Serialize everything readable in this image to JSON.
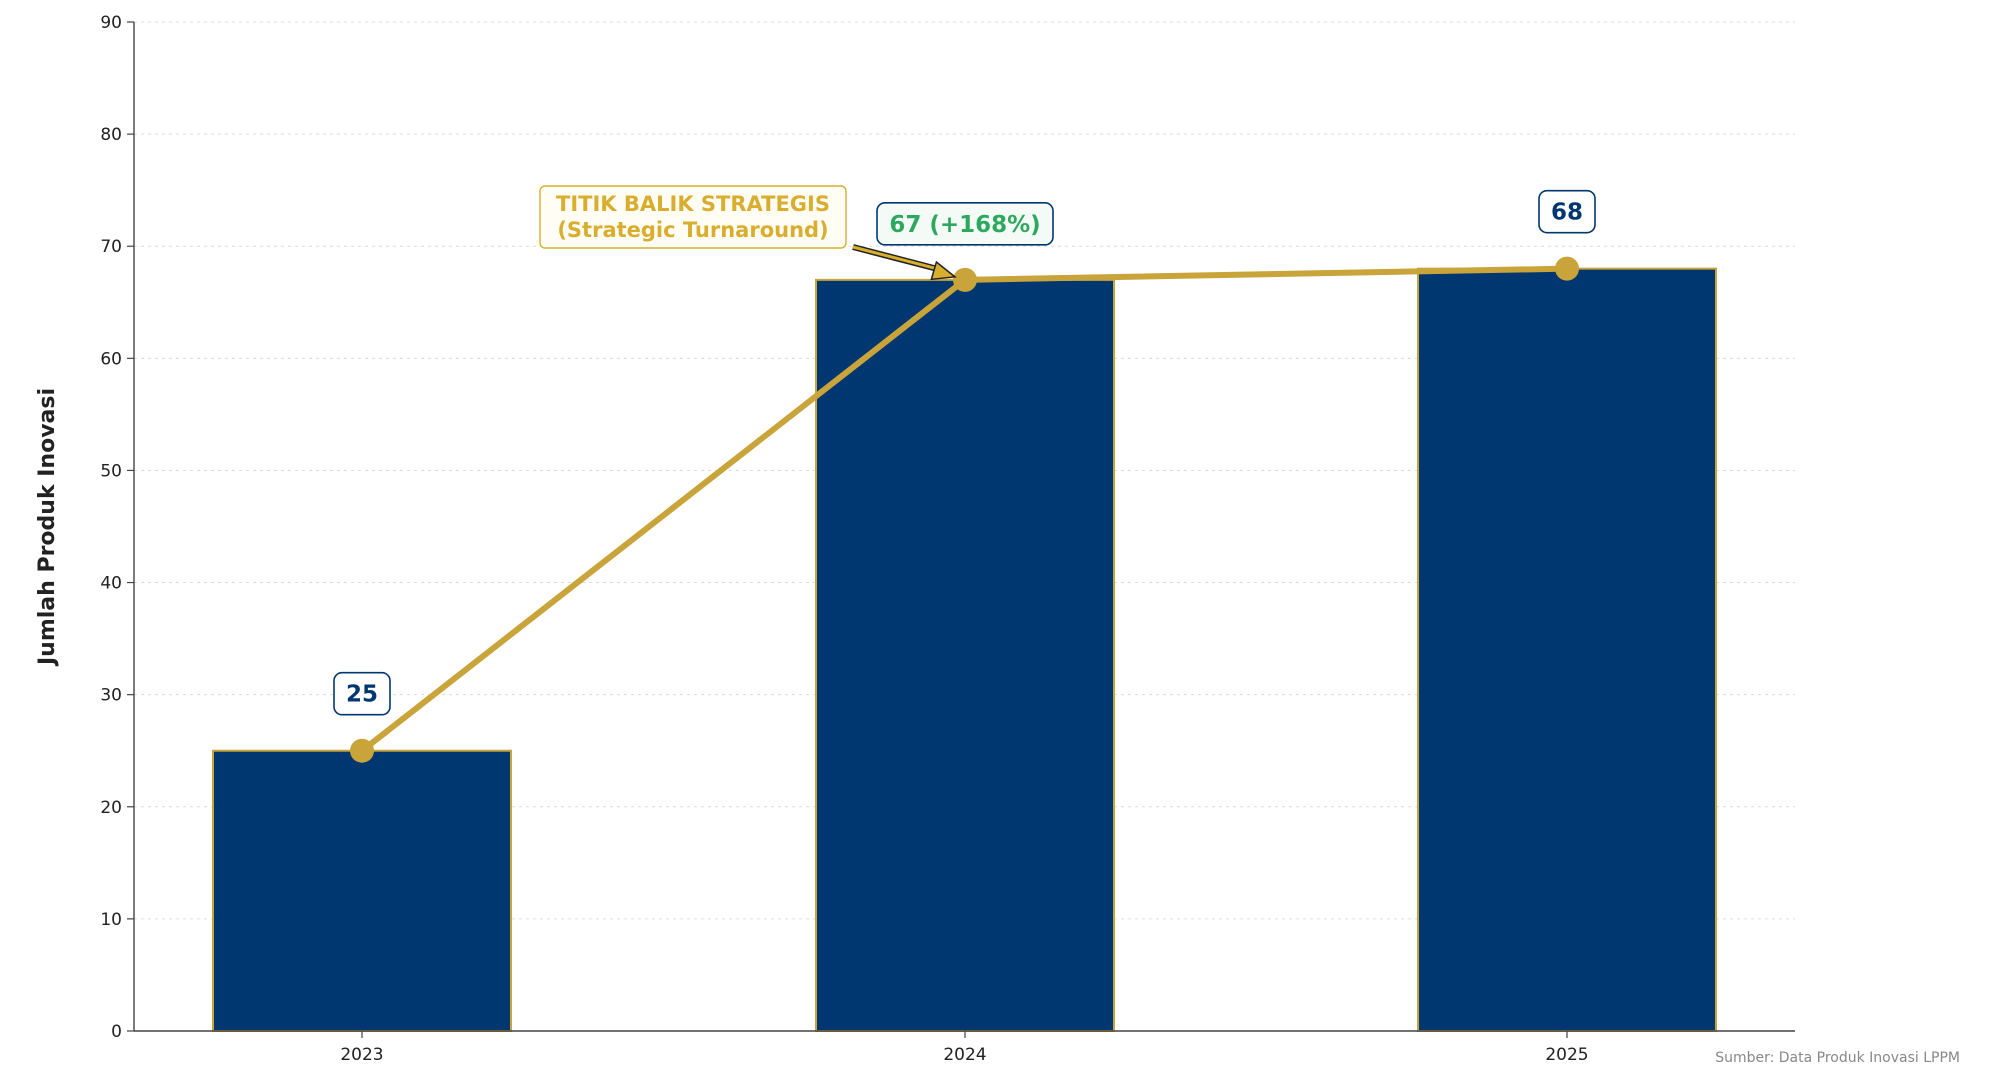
{
  "chart_data": {
    "type": "bar",
    "categories": [
      "2023",
      "2024",
      "2025"
    ],
    "values": [
      25,
      67,
      68
    ],
    "line_values": [
      25,
      67,
      68
    ],
    "xlabel": "",
    "ylabel": "Jumlah Produk Inovasi",
    "ylim": [
      0,
      90
    ],
    "yticks": [
      0,
      10,
      20,
      30,
      40,
      50,
      60,
      70,
      80,
      90
    ],
    "grid": "horizontal dotted",
    "legend": "none",
    "data_labels": [
      "25",
      "67 (+168%)",
      "68"
    ],
    "annotation": {
      "line1": "TITIK BALIK STRATEGIS",
      "line2": "(Strategic Turnaround)",
      "target_category": "2024"
    },
    "source": "Sumber: Data Produk Inovasi LPPM",
    "colors": {
      "bar_fill": "#003770",
      "bar_edge": "#C9A43A",
      "line": "#C9A43A",
      "label_default": "#003770",
      "label_highlight": "#2DA85F",
      "annotation": "#D9AE2F"
    }
  }
}
